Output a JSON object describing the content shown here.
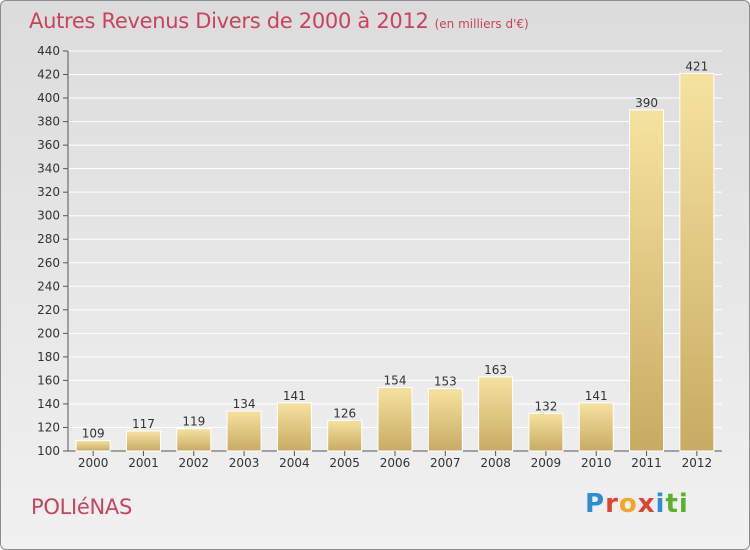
{
  "header": {
    "title": "Autres Revenus Divers de 2000 à 2012",
    "subtitle": "(en milliers d'€)"
  },
  "footer": {
    "place": "POLIéNAS",
    "logo": "Proxiti"
  },
  "colors": {
    "title": "#c8435c",
    "bar_light": "#f6e2a0",
    "bar_dark": "#c8ab63",
    "axis": "#555555",
    "grid": "#ffffff"
  },
  "chart_data": {
    "type": "bar",
    "title": "Autres Revenus Divers de 2000 à 2012",
    "subtitle": "(en milliers d'€)",
    "categories": [
      "2000",
      "2001",
      "2002",
      "2003",
      "2004",
      "2005",
      "2006",
      "2007",
      "2008",
      "2009",
      "2010",
      "2011",
      "2012"
    ],
    "values": [
      109,
      117,
      119,
      134,
      141,
      126,
      154,
      153,
      163,
      132,
      141,
      390,
      421
    ],
    "data_labels": [
      "109",
      "117",
      "119",
      "134",
      "141",
      "126",
      "154",
      "153",
      "163",
      "132",
      "141",
      "390",
      "421"
    ],
    "y_ticks": [
      "100",
      "120",
      "140",
      "160",
      "180",
      "200",
      "220",
      "240",
      "260",
      "280",
      "300",
      "320",
      "340",
      "360",
      "380",
      "400",
      "420",
      "440"
    ],
    "ylim": [
      100,
      440
    ],
    "grid": true,
    "xlabel": "",
    "ylabel": ""
  }
}
